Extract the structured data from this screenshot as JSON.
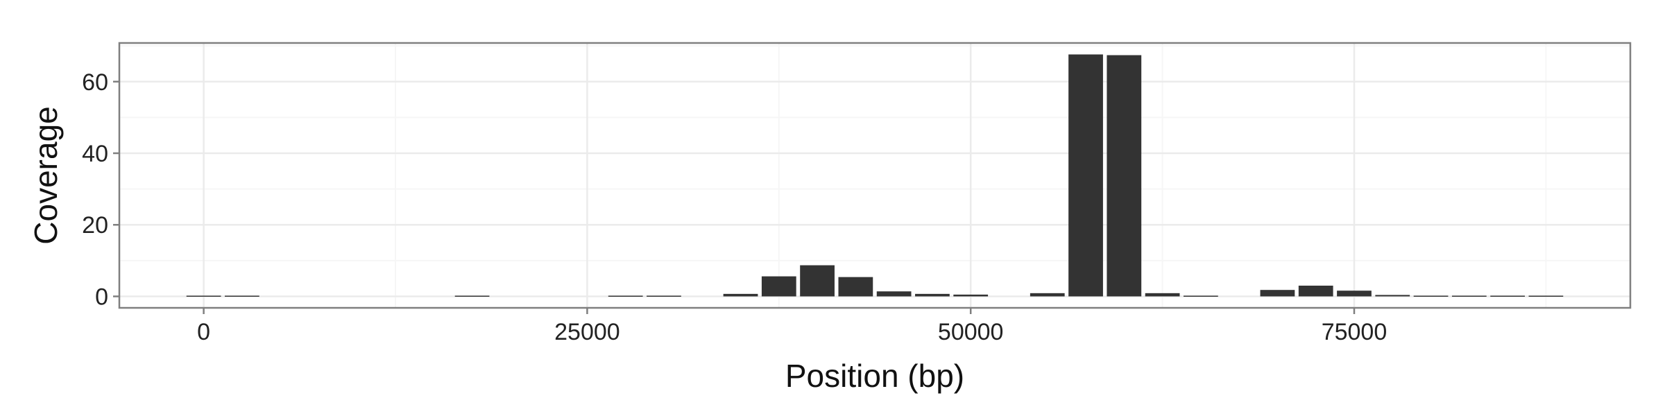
{
  "chart_data": {
    "type": "bar",
    "xlabel": "Position (bp)",
    "ylabel": "Coverage",
    "x_ticks": [
      0,
      25000,
      50000,
      75000
    ],
    "y_ticks": [
      0,
      20,
      40,
      60
    ],
    "xlim": [
      -5500,
      93000
    ],
    "ylim": [
      -3.2,
      70.8
    ],
    "bin_width": 2500,
    "grid": true,
    "legend": "none",
    "colors": {
      "bar": "#333333",
      "panel_border": "#7f7f7f",
      "grid_major": "#ebebeb",
      "grid_minor": "#f6f6f6"
    },
    "bars": [
      {
        "x": 0,
        "y": 0.2
      },
      {
        "x": 2500,
        "y": 0.2
      },
      {
        "x": 17500,
        "y": 0.2
      },
      {
        "x": 27500,
        "y": 0.2
      },
      {
        "x": 30000,
        "y": 0.2
      },
      {
        "x": 35000,
        "y": 0.7
      },
      {
        "x": 37500,
        "y": 5.6
      },
      {
        "x": 40000,
        "y": 8.7
      },
      {
        "x": 42500,
        "y": 5.4
      },
      {
        "x": 45000,
        "y": 1.4
      },
      {
        "x": 47500,
        "y": 0.7
      },
      {
        "x": 50000,
        "y": 0.5
      },
      {
        "x": 55000,
        "y": 0.9
      },
      {
        "x": 57500,
        "y": 67.6
      },
      {
        "x": 60000,
        "y": 67.4
      },
      {
        "x": 62500,
        "y": 0.9
      },
      {
        "x": 65000,
        "y": 0.2
      },
      {
        "x": 70000,
        "y": 1.8
      },
      {
        "x": 72500,
        "y": 3.0
      },
      {
        "x": 75000,
        "y": 1.6
      },
      {
        "x": 77500,
        "y": 0.4
      },
      {
        "x": 80000,
        "y": 0.2
      },
      {
        "x": 82500,
        "y": 0.2
      },
      {
        "x": 85000,
        "y": 0.2
      },
      {
        "x": 87500,
        "y": 0.2
      }
    ]
  }
}
